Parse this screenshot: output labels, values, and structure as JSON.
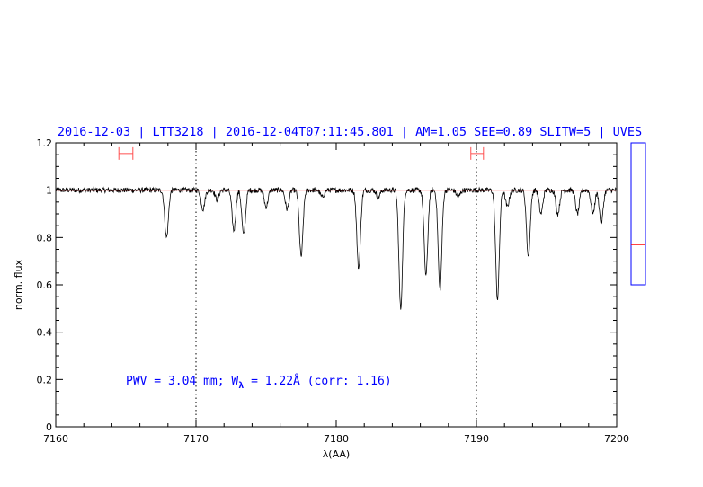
{
  "chart_data": {
    "type": "line",
    "title": "2016-12-03 | LTT3218 | 2016-12-04T07:11:45.801 | AM=1.05 SEE=0.89 SLITW=5 | UVES",
    "xlabel": "λ(AA)",
    "ylabel": "norm. flux",
    "xlim": [
      7160,
      7200
    ],
    "ylim": [
      0,
      1.2
    ],
    "x_ticks": [
      7160,
      7170,
      7180,
      7190,
      7200
    ],
    "x_tick_labels": [
      "7160",
      "7170",
      "7180",
      "7190",
      "7200"
    ],
    "y_ticks": [
      0,
      0.2,
      0.4,
      0.6,
      0.8,
      1.0,
      1.2
    ],
    "y_tick_labels": [
      "0",
      "0.2",
      "0.4",
      "0.6",
      "0.8",
      "1",
      "1.2"
    ],
    "continuum_level": 1.0,
    "vertical_markers": [
      7170,
      7190
    ],
    "continuum_windows": [
      {
        "from": 7164.5,
        "to": 7165.5,
        "y": 1.155
      },
      {
        "from": 7189.6,
        "to": 7190.5,
        "y": 1.155
      }
    ],
    "annotation": {
      "pre": "PWV = 3.04 mm; W",
      "sub": "λ",
      "post": " = 1.22Å (corr: 1.16)"
    },
    "absorption_lines": [
      {
        "x": 7167.9,
        "depth": 0.2
      },
      {
        "x": 7170.5,
        "depth": 0.08
      },
      {
        "x": 7171.5,
        "depth": 0.04
      },
      {
        "x": 7172.7,
        "depth": 0.17
      },
      {
        "x": 7173.4,
        "depth": 0.19
      },
      {
        "x": 7175.0,
        "depth": 0.07
      },
      {
        "x": 7176.5,
        "depth": 0.08
      },
      {
        "x": 7177.5,
        "depth": 0.28
      },
      {
        "x": 7179.0,
        "depth": 0.03
      },
      {
        "x": 7181.6,
        "depth": 0.33
      },
      {
        "x": 7183.0,
        "depth": 0.03
      },
      {
        "x": 7184.6,
        "depth": 0.5
      },
      {
        "x": 7186.4,
        "depth": 0.36
      },
      {
        "x": 7187.4,
        "depth": 0.42
      },
      {
        "x": 7188.7,
        "depth": 0.03
      },
      {
        "x": 7191.5,
        "depth": 0.46
      },
      {
        "x": 7192.2,
        "depth": 0.07
      },
      {
        "x": 7193.7,
        "depth": 0.28
      },
      {
        "x": 7194.6,
        "depth": 0.1
      },
      {
        "x": 7195.8,
        "depth": 0.1
      },
      {
        "x": 7197.2,
        "depth": 0.1
      },
      {
        "x": 7198.3,
        "depth": 0.1
      },
      {
        "x": 7198.9,
        "depth": 0.14
      }
    ],
    "side_panel": {
      "ylim": [
        0,
        1.2
      ],
      "marker_value": 0.77,
      "box_from": 0.6,
      "box_to": 1.2
    },
    "colors": {
      "title": "#0000ff",
      "annotation": "#0000ff",
      "spectrum": "#000000",
      "continuum": "#ff0000",
      "windows": "#ff5050",
      "side_box": "#0000ff",
      "side_marker": "#ff0000",
      "axes": "#000000",
      "markers": "#000000"
    },
    "grid": false,
    "legend": "none"
  }
}
